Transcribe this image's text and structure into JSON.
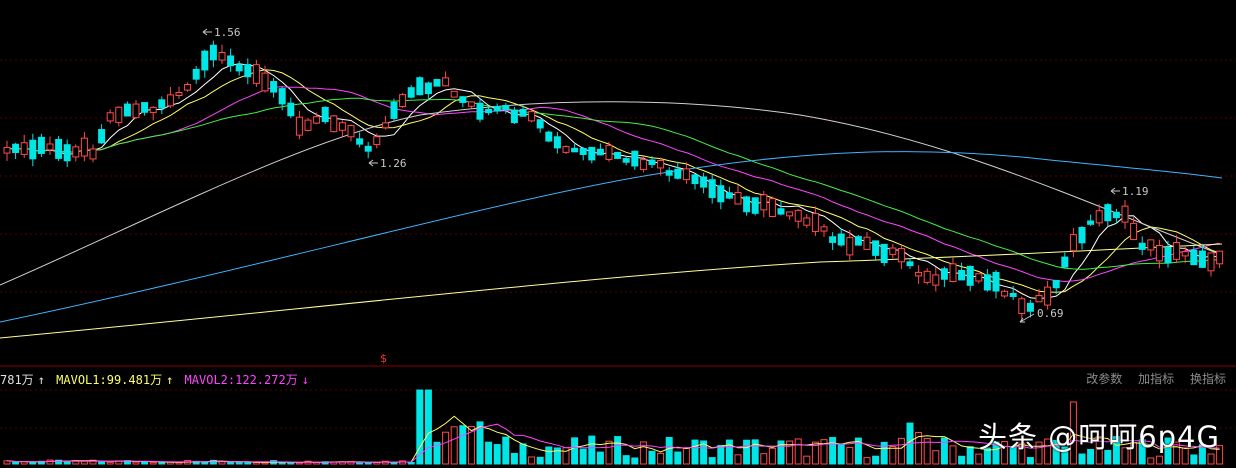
{
  "price_annotations": {
    "high1": "1.56",
    "low1": "1.26",
    "high2": "1.19",
    "low2": "0.69"
  },
  "volume_legend": {
    "vol": "781万",
    "vol_arrow": "↑",
    "mavol1": "MAVOL1:99.481万",
    "mavol1_arrow": "↑",
    "mavol2": "MAVOL2:122.272万",
    "mavol2_arrow": "↓"
  },
  "toolbar": {
    "modify_params": "改参数",
    "add_indicator": "加指标",
    "change_indicator": "换指标"
  },
  "marker": "$",
  "watermark": "头条 @呵呵6p4G",
  "colors": {
    "up": "#ff4a4a",
    "down": "#00e5e5",
    "ma5": "#ffffff",
    "ma10": "#ffff66",
    "ma20": "#ff44ff",
    "ma30": "#44ee44",
    "ma60": "#d0d0d0",
    "ma120": "#3fb4ff",
    "ma250": "#ffff99",
    "grid": "#5a0000"
  }
}
